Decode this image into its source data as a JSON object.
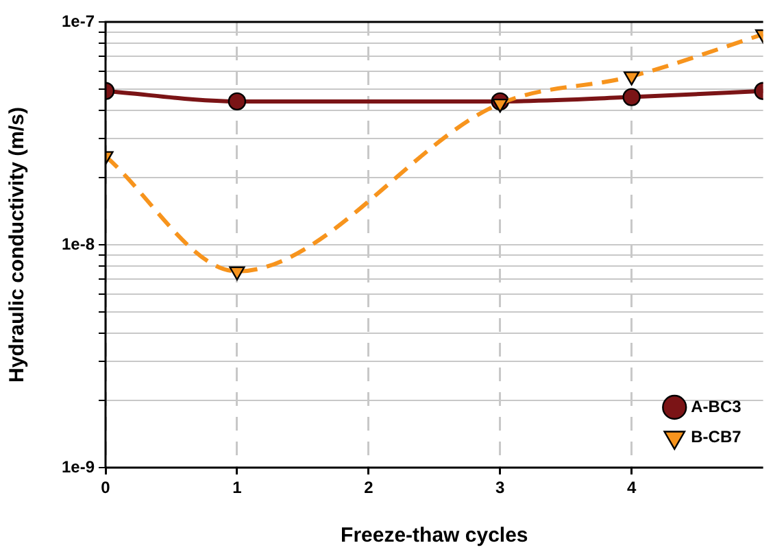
{
  "chart_data": {
    "type": "line",
    "xlabel": "Freeze-thaw cycles",
    "ylabel": "Hydraulic conductivity (m/s)",
    "x": [
      0,
      1,
      3,
      4,
      5
    ],
    "series": [
      {
        "name": "A-BC3",
        "color": "#7b1416",
        "values": [
          4.9e-08,
          4.4e-08,
          4.4e-08,
          4.6e-08,
          4.9e-08
        ],
        "marker": "circle",
        "line_style": "solid"
      },
      {
        "name": "B-CB7",
        "color": "#f7941d",
        "values": [
          2.5e-08,
          7.6e-09,
          4.3e-08,
          5.7e-08,
          8.8e-08
        ],
        "marker": "triangle",
        "line_style": "dashed"
      }
    ],
    "log": "y",
    "xlim": [
      0,
      5
    ],
    "xticks": [
      0,
      1,
      2,
      3,
      4
    ],
    "ylim": [
      1e-09,
      1e-07
    ],
    "yticks": [
      {
        "value": 1e-09,
        "label": "1e-9"
      },
      {
        "value": 2e-09,
        "label": null
      },
      {
        "value": 3e-09,
        "label": null
      },
      {
        "value": 4e-09,
        "label": null
      },
      {
        "value": 5e-09,
        "label": null
      },
      {
        "value": 6e-09,
        "label": null
      },
      {
        "value": 7e-09,
        "label": null
      },
      {
        "value": 8e-09,
        "label": null
      },
      {
        "value": 9e-09,
        "label": null
      },
      {
        "value": 1e-08,
        "label": "1e-8"
      },
      {
        "value": 2e-08,
        "label": null
      },
      {
        "value": 3e-08,
        "label": null
      },
      {
        "value": 4e-08,
        "label": null
      },
      {
        "value": 5e-08,
        "label": null
      },
      {
        "value": 6e-08,
        "label": null
      },
      {
        "value": 7e-08,
        "label": null
      },
      {
        "value": 8e-08,
        "label": null
      },
      {
        "value": 9e-08,
        "label": null
      },
      {
        "value": 1e-07,
        "label": "1e-7"
      }
    ],
    "grid": true,
    "legend": "bottom right"
  }
}
